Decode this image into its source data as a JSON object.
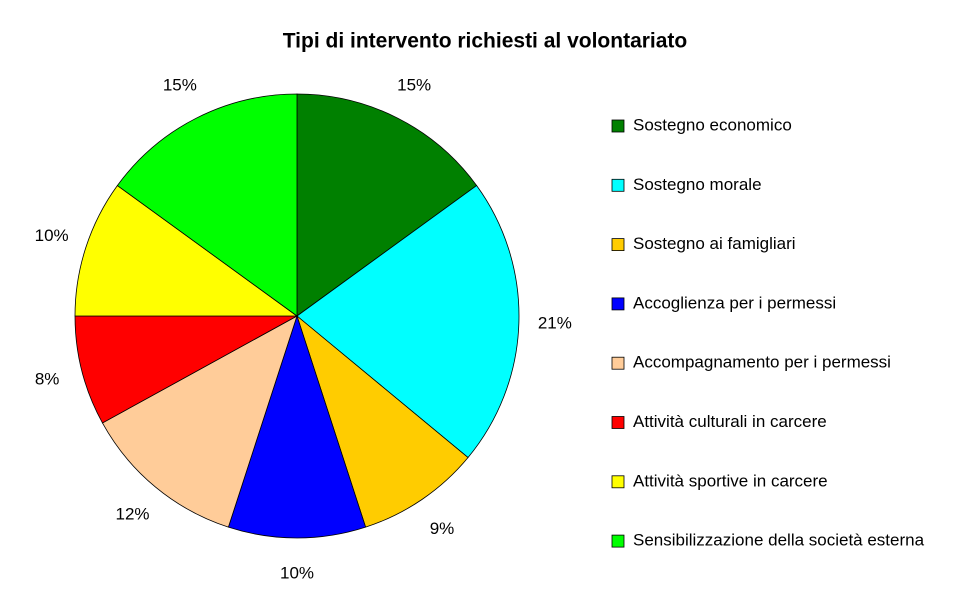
{
  "chart_data": {
    "type": "pie",
    "title": "Tipi di intervento richiesti al volontariato",
    "categories": [
      "Sostegno economico",
      "Sostegno morale",
      "Sostegno ai famigliari",
      "Accoglienza per i permessi",
      "Accompagnamento per i permessi",
      "Attività culturali in carcere",
      "Attività sportive in carcere",
      "Sensibilizzazione della società esterna"
    ],
    "values": [
      15,
      21,
      9,
      10,
      12,
      8,
      10,
      15
    ],
    "value_labels": [
      "15%",
      "21%",
      "9%",
      "10%",
      "12%",
      "8%",
      "10%",
      "15%"
    ],
    "colors": [
      "#008000",
      "#00ffff",
      "#ffcc00",
      "#0000ff",
      "#ffcc99",
      "#ff0000",
      "#ffff00",
      "#00ff00"
    ],
    "legend": "right"
  }
}
